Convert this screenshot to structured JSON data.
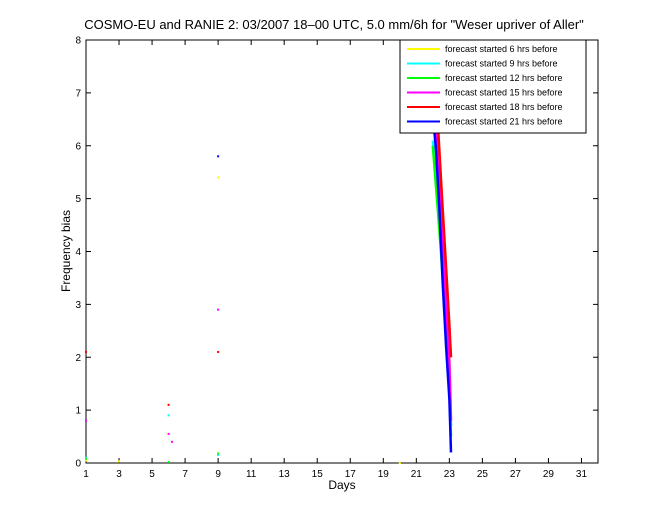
{
  "chart_data": {
    "type": "line",
    "title": "COSMO-EU and RANIE 2: 03/2007 18–00 UTC, 5.0 mm/6h for \"Weser upriver of Aller\"",
    "xlabel": "Days",
    "ylabel": "Frequency bias",
    "xlim": [
      1,
      32
    ],
    "ylim": [
      0,
      8
    ],
    "xticks": [
      1,
      3,
      5,
      7,
      9,
      11,
      13,
      15,
      17,
      19,
      21,
      23,
      25,
      27,
      29,
      31
    ],
    "yticks": [
      0,
      1,
      2,
      3,
      4,
      5,
      6,
      7,
      8
    ],
    "legend_position": "top-right",
    "grid": false,
    "series": [
      {
        "name": "forecast started 6 hrs before",
        "color": "#ffff00",
        "points": [
          [
            1,
            0.05
          ],
          [
            3,
            0.03
          ],
          [
            6,
            1.1
          ],
          [
            9,
            5.4
          ],
          [
            20,
            0.0
          ],
          [
            22,
            7.3
          ],
          [
            22.2,
            6.6
          ],
          [
            22.4,
            5.8
          ],
          [
            22.6,
            4.6
          ],
          [
            22.8,
            3.3
          ],
          [
            23,
            2.0
          ],
          [
            23.1,
            0.9
          ]
        ]
      },
      {
        "name": "forecast started 9 hrs before",
        "color": "#00ffff",
        "points": [
          [
            1,
            0.1
          ],
          [
            6,
            0.9
          ],
          [
            9,
            0.15
          ],
          [
            22,
            6.1
          ],
          [
            22.2,
            5.5
          ],
          [
            22.4,
            4.5
          ],
          [
            22.6,
            3.6
          ],
          [
            22.8,
            2.5
          ],
          [
            23,
            1.6
          ],
          [
            23.1,
            0.7
          ]
        ]
      },
      {
        "name": "forecast started 12 hrs before",
        "color": "#00ff00",
        "points": [
          [
            1,
            0.08
          ],
          [
            6,
            0.02
          ],
          [
            9,
            0.18
          ],
          [
            22,
            6.0
          ],
          [
            22.2,
            5.2
          ],
          [
            22.4,
            4.4
          ],
          [
            22.6,
            3.5
          ],
          [
            22.8,
            2.4
          ],
          [
            23,
            1.3
          ],
          [
            23.1,
            0.5
          ]
        ]
      },
      {
        "name": "forecast started 15 hrs before",
        "color": "#ff00ff",
        "points": [
          [
            1,
            0.8
          ],
          [
            6,
            0.55
          ],
          [
            6.2,
            0.4
          ],
          [
            9,
            2.9
          ],
          [
            22,
            7.0
          ],
          [
            22.2,
            6.4
          ],
          [
            22.4,
            5.4
          ],
          [
            22.6,
            4.2
          ],
          [
            22.8,
            3.0
          ],
          [
            23,
            1.9
          ],
          [
            23.1,
            0.8
          ]
        ]
      },
      {
        "name": "forecast started 18 hrs before",
        "color": "#ff0000",
        "points": [
          [
            1,
            2.1
          ],
          [
            6,
            1.1
          ],
          [
            9,
            2.1
          ],
          [
            22,
            7.5
          ],
          [
            22.2,
            7.0
          ],
          [
            22.4,
            5.9
          ],
          [
            22.6,
            4.8
          ],
          [
            22.8,
            3.7
          ],
          [
            23,
            2.6
          ],
          [
            23.1,
            2.0
          ]
        ]
      },
      {
        "name": "forecast started 21 hrs before",
        "color": "#0000ff",
        "points": [
          [
            9,
            5.8
          ],
          [
            22,
            6.6
          ],
          [
            22.2,
            5.9
          ],
          [
            22.4,
            4.8
          ],
          [
            22.6,
            3.4
          ],
          [
            22.8,
            2.2
          ],
          [
            23,
            1.2
          ],
          [
            23.1,
            0.2
          ]
        ]
      }
    ]
  }
}
